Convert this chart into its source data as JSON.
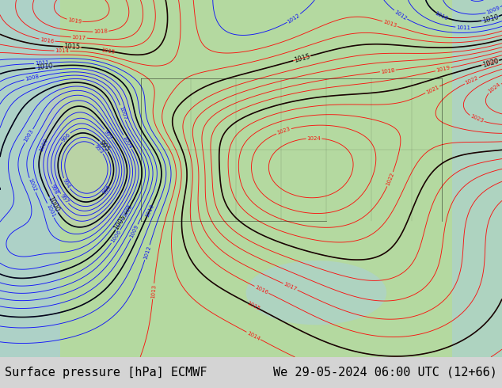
{
  "title_left": "Surface pressure [hPa] ECMWF",
  "title_right": "We 29-05-2024 06:00 UTC (12+66)",
  "land_color": "#b4d9a0",
  "footer_bg": "#d4d4d4",
  "footer_fontsize": 11,
  "fig_width": 6.34,
  "fig_height": 4.9,
  "dpi": 100
}
